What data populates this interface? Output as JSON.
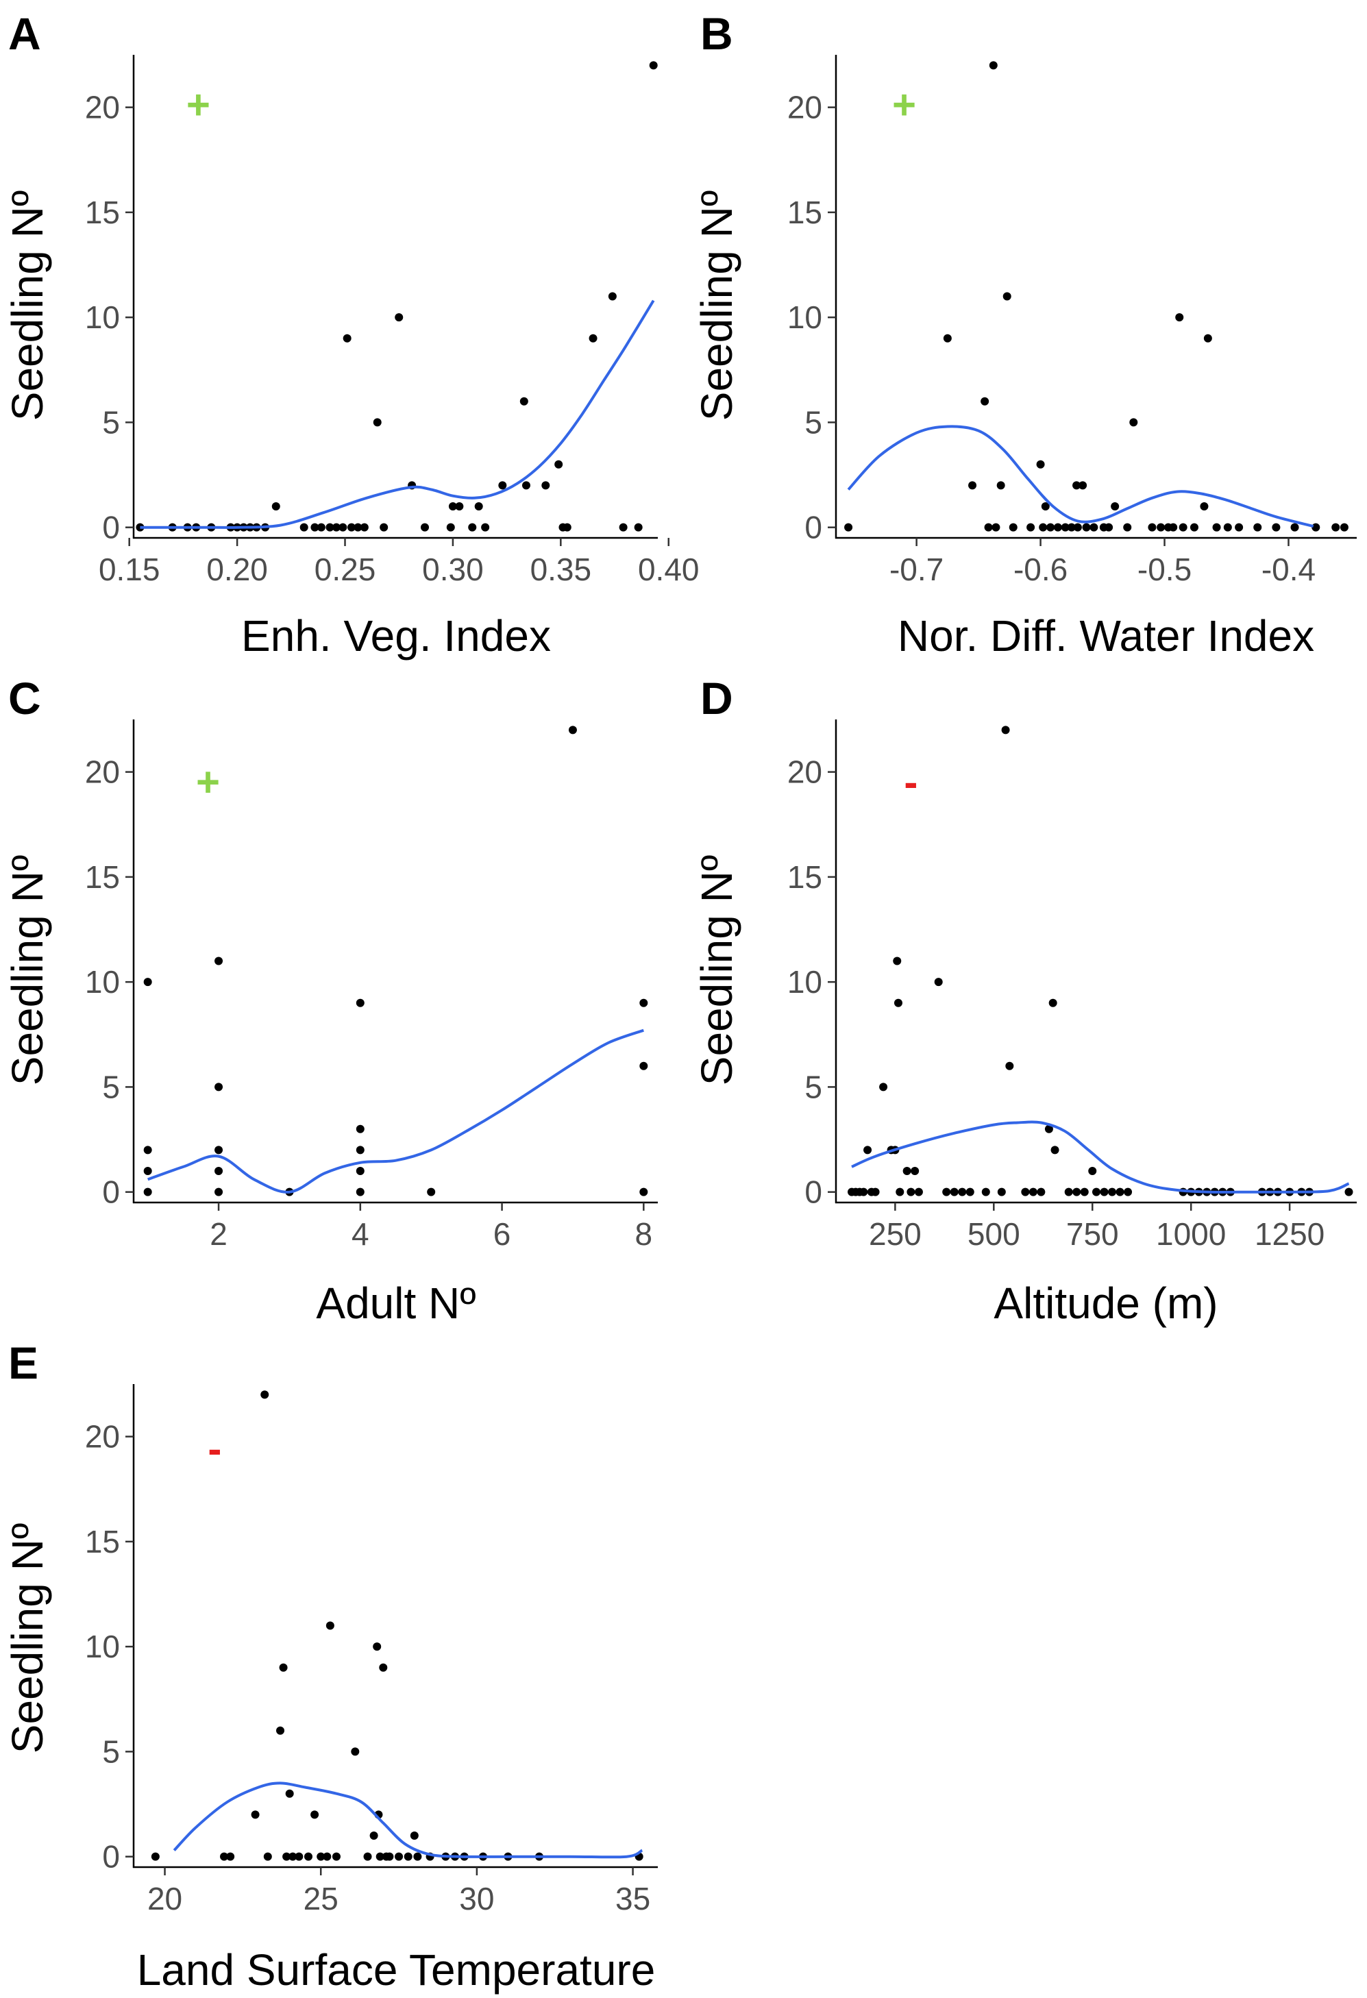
{
  "figure_type": "scatter_with_smooth",
  "colors": {
    "points": "#000000",
    "smooth": "#3366e6",
    "positive": "#8cd24b",
    "negative": "#e61e1e",
    "axis": "#000000",
    "tick_text": "#4d4d4d"
  },
  "chart_data": [
    {
      "panel": "A",
      "type": "scatter",
      "title": "",
      "xlabel": "Enh. Veg. Index",
      "ylabel": "Seedling Nº",
      "sign": "+",
      "sign_color": "#8cd24b",
      "sign_pos": [
        0.182,
        20.1
      ],
      "xlim": [
        0.152,
        0.395
      ],
      "ylim": [
        -0.5,
        22.5
      ],
      "xticks": [
        0.15,
        0.2,
        0.25,
        0.3,
        0.35,
        0.4
      ],
      "xtick_labels": [
        "0.15",
        "0.20",
        "0.25",
        "0.30",
        "0.35",
        "0.40"
      ],
      "yticks": [
        0,
        5,
        10,
        15,
        20
      ],
      "ytick_labels": [
        "0",
        "5",
        "10",
        "15",
        "20"
      ],
      "points": [
        [
          0.155,
          0
        ],
        [
          0.17,
          0
        ],
        [
          0.177,
          0
        ],
        [
          0.181,
          0
        ],
        [
          0.188,
          0
        ],
        [
          0.197,
          0
        ],
        [
          0.2,
          0
        ],
        [
          0.203,
          0
        ],
        [
          0.206,
          0
        ],
        [
          0.209,
          0
        ],
        [
          0.213,
          0
        ],
        [
          0.218,
          1
        ],
        [
          0.231,
          0
        ],
        [
          0.236,
          0
        ],
        [
          0.239,
          0
        ],
        [
          0.243,
          0
        ],
        [
          0.246,
          0
        ],
        [
          0.249,
          0
        ],
        [
          0.251,
          9
        ],
        [
          0.253,
          0
        ],
        [
          0.256,
          0
        ],
        [
          0.259,
          0
        ],
        [
          0.265,
          5
        ],
        [
          0.268,
          0
        ],
        [
          0.275,
          10
        ],
        [
          0.281,
          2
        ],
        [
          0.287,
          0
        ],
        [
          0.299,
          0
        ],
        [
          0.3,
          1
        ],
        [
          0.303,
          1
        ],
        [
          0.309,
          0
        ],
        [
          0.312,
          1
        ],
        [
          0.315,
          0
        ],
        [
          0.323,
          2
        ],
        [
          0.333,
          6
        ],
        [
          0.334,
          2
        ],
        [
          0.343,
          2
        ],
        [
          0.349,
          3
        ],
        [
          0.351,
          0
        ],
        [
          0.353,
          0
        ],
        [
          0.365,
          9
        ],
        [
          0.374,
          11
        ],
        [
          0.379,
          0
        ],
        [
          0.386,
          0
        ],
        [
          0.393,
          22
        ]
      ],
      "smooth": [
        [
          0.155,
          0
        ],
        [
          0.17,
          0
        ],
        [
          0.19,
          0
        ],
        [
          0.2,
          0
        ],
        [
          0.22,
          0.1
        ],
        [
          0.24,
          0.7
        ],
        [
          0.26,
          1.4
        ],
        [
          0.28,
          1.9
        ],
        [
          0.29,
          1.8
        ],
        [
          0.3,
          1.5
        ],
        [
          0.31,
          1.4
        ],
        [
          0.32,
          1.6
        ],
        [
          0.33,
          2.1
        ],
        [
          0.34,
          2.9
        ],
        [
          0.35,
          4.0
        ],
        [
          0.36,
          5.4
        ],
        [
          0.37,
          7.0
        ],
        [
          0.38,
          8.6
        ],
        [
          0.393,
          10.8
        ]
      ]
    },
    {
      "panel": "B",
      "type": "scatter",
      "title": "",
      "xlabel": "Nor. Diff. Water Index",
      "ylabel": "Seedling Nº",
      "sign": "+",
      "sign_color": "#8cd24b",
      "sign_pos": [
        -0.71,
        20.1
      ],
      "xlim": [
        -0.765,
        -0.345
      ],
      "ylim": [
        -0.5,
        22.5
      ],
      "xticks": [
        -0.7,
        -0.6,
        -0.5,
        -0.4
      ],
      "xtick_labels": [
        "-0.7",
        "-0.6",
        "-0.5",
        "-0.4"
      ],
      "yticks": [
        0,
        5,
        10,
        15,
        20
      ],
      "ytick_labels": [
        "0",
        "5",
        "10",
        "15",
        "20"
      ],
      "points": [
        [
          -0.755,
          0
        ],
        [
          -0.675,
          9
        ],
        [
          -0.655,
          2
        ],
        [
          -0.645,
          6
        ],
        [
          -0.642,
          0
        ],
        [
          -0.638,
          22
        ],
        [
          -0.636,
          0
        ],
        [
          -0.632,
          2
        ],
        [
          -0.627,
          11
        ],
        [
          -0.622,
          0
        ],
        [
          -0.608,
          0
        ],
        [
          -0.598,
          0
        ],
        [
          -0.6,
          3
        ],
        [
          -0.596,
          1
        ],
        [
          -0.592,
          0
        ],
        [
          -0.586,
          0
        ],
        [
          -0.58,
          0
        ],
        [
          -0.575,
          0
        ],
        [
          -0.571,
          2
        ],
        [
          -0.57,
          0
        ],
        [
          -0.566,
          2
        ],
        [
          -0.563,
          0
        ],
        [
          -0.557,
          0
        ],
        [
          -0.549,
          0
        ],
        [
          -0.545,
          0
        ],
        [
          -0.54,
          1
        ],
        [
          -0.53,
          0
        ],
        [
          -0.525,
          5
        ],
        [
          -0.51,
          0
        ],
        [
          -0.503,
          0
        ],
        [
          -0.497,
          0
        ],
        [
          -0.493,
          0
        ],
        [
          -0.488,
          10
        ],
        [
          -0.485,
          0
        ],
        [
          -0.476,
          0
        ],
        [
          -0.468,
          1
        ],
        [
          -0.465,
          9
        ],
        [
          -0.458,
          0
        ],
        [
          -0.449,
          0
        ],
        [
          -0.44,
          0
        ],
        [
          -0.425,
          0
        ],
        [
          -0.41,
          0
        ],
        [
          -0.395,
          0
        ],
        [
          -0.378,
          0
        ],
        [
          -0.362,
          0
        ],
        [
          -0.355,
          0
        ]
      ],
      "smooth": [
        [
          -0.755,
          1.8
        ],
        [
          -0.73,
          3.4
        ],
        [
          -0.7,
          4.5
        ],
        [
          -0.675,
          4.8
        ],
        [
          -0.65,
          4.6
        ],
        [
          -0.63,
          3.7
        ],
        [
          -0.61,
          2.3
        ],
        [
          -0.59,
          1.0
        ],
        [
          -0.57,
          0.3
        ],
        [
          -0.55,
          0.4
        ],
        [
          -0.53,
          0.9
        ],
        [
          -0.51,
          1.4
        ],
        [
          -0.49,
          1.7
        ],
        [
          -0.47,
          1.6
        ],
        [
          -0.45,
          1.3
        ],
        [
          -0.43,
          0.9
        ],
        [
          -0.41,
          0.5
        ],
        [
          -0.38,
          0.05
        ]
      ]
    },
    {
      "panel": "C",
      "type": "scatter",
      "title": "",
      "xlabel": "Adult Nº",
      "ylabel": "Seedling Nº",
      "sign": "+",
      "sign_color": "#8cd24b",
      "sign_pos": [
        1.85,
        19.5
      ],
      "xlim": [
        0.8,
        8.2
      ],
      "ylim": [
        -0.5,
        22.5
      ],
      "xticks": [
        2,
        4,
        6,
        8
      ],
      "xtick_labels": [
        "2",
        "4",
        "6",
        "8"
      ],
      "yticks": [
        0,
        5,
        10,
        15,
        20
      ],
      "ytick_labels": [
        "0",
        "5",
        "10",
        "15",
        "20"
      ],
      "points": [
        [
          1,
          10
        ],
        [
          1,
          2
        ],
        [
          1,
          1
        ],
        [
          1,
          0
        ],
        [
          2,
          11
        ],
        [
          2,
          5
        ],
        [
          2,
          2
        ],
        [
          2,
          1
        ],
        [
          2,
          0
        ],
        [
          3,
          0
        ],
        [
          4,
          9
        ],
        [
          4,
          3
        ],
        [
          4,
          2
        ],
        [
          4,
          1
        ],
        [
          4,
          0
        ],
        [
          5,
          0
        ],
        [
          7,
          22
        ],
        [
          8,
          9
        ],
        [
          8,
          6
        ],
        [
          8,
          0
        ]
      ],
      "smooth": [
        [
          1,
          0.6
        ],
        [
          1.5,
          1.2
        ],
        [
          2,
          1.7
        ],
        [
          2.5,
          0.6
        ],
        [
          3,
          0
        ],
        [
          3.5,
          0.9
        ],
        [
          4,
          1.4
        ],
        [
          4.5,
          1.5
        ],
        [
          5,
          2.0
        ],
        [
          5.5,
          2.9
        ],
        [
          6,
          3.9
        ],
        [
          6.5,
          5.0
        ],
        [
          7,
          6.1
        ],
        [
          7.5,
          7.1
        ],
        [
          8,
          7.7
        ]
      ]
    },
    {
      "panel": "D",
      "type": "scatter",
      "title": "",
      "xlabel": "Altitude (m)",
      "ylabel": "Seedling Nº",
      "sign": "-",
      "sign_color": "#e61e1e",
      "sign_pos": [
        290,
        19.5
      ],
      "xlim": [
        100,
        1420
      ],
      "ylim": [
        -0.5,
        22.5
      ],
      "xticks": [
        250,
        500,
        750,
        1000,
        1250
      ],
      "xtick_labels": [
        "250",
        "500",
        "750",
        "1000",
        "1250"
      ],
      "yticks": [
        0,
        5,
        10,
        15,
        20
      ],
      "ytick_labels": [
        "0",
        "5",
        "10",
        "15",
        "20"
      ],
      "points": [
        [
          140,
          0
        ],
        [
          150,
          0
        ],
        [
          160,
          0
        ],
        [
          170,
          0
        ],
        [
          180,
          2
        ],
        [
          190,
          0
        ],
        [
          200,
          0
        ],
        [
          220,
          5
        ],
        [
          240,
          2
        ],
        [
          250,
          2
        ],
        [
          255,
          11
        ],
        [
          258,
          9
        ],
        [
          262,
          0
        ],
        [
          280,
          1
        ],
        [
          290,
          0
        ],
        [
          300,
          1
        ],
        [
          310,
          0
        ],
        [
          360,
          10
        ],
        [
          380,
          0
        ],
        [
          400,
          0
        ],
        [
          420,
          0
        ],
        [
          440,
          0
        ],
        [
          480,
          0
        ],
        [
          520,
          0
        ],
        [
          530,
          22
        ],
        [
          540,
          6
        ],
        [
          580,
          0
        ],
        [
          600,
          0
        ],
        [
          620,
          0
        ],
        [
          640,
          3
        ],
        [
          650,
          9
        ],
        [
          655,
          2
        ],
        [
          690,
          0
        ],
        [
          710,
          0
        ],
        [
          730,
          0
        ],
        [
          750,
          1
        ],
        [
          760,
          0
        ],
        [
          780,
          0
        ],
        [
          800,
          0
        ],
        [
          820,
          0
        ],
        [
          840,
          0
        ],
        [
          980,
          0
        ],
        [
          1000,
          0
        ],
        [
          1020,
          0
        ],
        [
          1040,
          0
        ],
        [
          1060,
          0
        ],
        [
          1080,
          0
        ],
        [
          1100,
          0
        ],
        [
          1180,
          0
        ],
        [
          1200,
          0
        ],
        [
          1220,
          0
        ],
        [
          1250,
          0
        ],
        [
          1280,
          0
        ],
        [
          1300,
          0
        ],
        [
          1400,
          0
        ]
      ],
      "smooth": [
        [
          140,
          1.2
        ],
        [
          200,
          1.7
        ],
        [
          300,
          2.3
        ],
        [
          400,
          2.8
        ],
        [
          500,
          3.2
        ],
        [
          560,
          3.3
        ],
        [
          620,
          3.3
        ],
        [
          680,
          2.9
        ],
        [
          740,
          2.0
        ],
        [
          800,
          1.1
        ],
        [
          880,
          0.4
        ],
        [
          960,
          0.1
        ],
        [
          1050,
          0
        ],
        [
          1150,
          0
        ],
        [
          1250,
          0
        ],
        [
          1350,
          0.05
        ],
        [
          1400,
          0.4
        ]
      ]
    },
    {
      "panel": "E",
      "type": "scatter",
      "title": "",
      "xlabel": "Land Surface Temperature",
      "ylabel": "Seedling Nº",
      "sign": "-",
      "sign_color": "#e61e1e",
      "sign_pos": [
        21.6,
        19.4
      ],
      "xlim": [
        19.0,
        35.8
      ],
      "ylim": [
        -0.5,
        22.5
      ],
      "xticks": [
        20,
        25,
        30,
        35
      ],
      "xtick_labels": [
        "20",
        "25",
        "30",
        "35"
      ],
      "yticks": [
        0,
        5,
        10,
        15,
        20
      ],
      "ytick_labels": [
        "0",
        "5",
        "10",
        "15",
        "20"
      ],
      "points": [
        [
          19.7,
          0
        ],
        [
          21.9,
          0
        ],
        [
          22.1,
          0
        ],
        [
          22.9,
          2
        ],
        [
          23.3,
          0
        ],
        [
          23.2,
          22
        ],
        [
          23.7,
          6
        ],
        [
          23.8,
          9
        ],
        [
          23.9,
          0
        ],
        [
          24.0,
          3
        ],
        [
          24.1,
          0
        ],
        [
          24.3,
          0
        ],
        [
          24.6,
          0
        ],
        [
          24.8,
          2
        ],
        [
          25.0,
          0
        ],
        [
          25.2,
          0
        ],
        [
          25.3,
          11
        ],
        [
          25.5,
          0
        ],
        [
          26.1,
          5
        ],
        [
          26.5,
          0
        ],
        [
          26.7,
          1
        ],
        [
          26.8,
          10
        ],
        [
          26.85,
          2
        ],
        [
          26.9,
          0
        ],
        [
          27.0,
          9
        ],
        [
          27.1,
          0
        ],
        [
          27.2,
          0
        ],
        [
          27.5,
          0
        ],
        [
          27.8,
          0
        ],
        [
          28.0,
          1
        ],
        [
          28.1,
          0
        ],
        [
          28.5,
          0
        ],
        [
          29.0,
          0
        ],
        [
          29.3,
          0
        ],
        [
          29.6,
          0
        ],
        [
          30.2,
          0
        ],
        [
          31.0,
          0
        ],
        [
          32.0,
          0
        ],
        [
          35.2,
          0
        ]
      ],
      "smooth": [
        [
          20.3,
          0.3
        ],
        [
          21.0,
          1.4
        ],
        [
          22.0,
          2.6
        ],
        [
          23.0,
          3.3
        ],
        [
          23.7,
          3.5
        ],
        [
          24.5,
          3.3
        ],
        [
          25.5,
          3.0
        ],
        [
          26.3,
          2.6
        ],
        [
          27.0,
          1.6
        ],
        [
          27.7,
          0.6
        ],
        [
          28.5,
          0.1
        ],
        [
          29.5,
          0
        ],
        [
          31,
          0
        ],
        [
          33,
          0
        ],
        [
          34.8,
          0
        ],
        [
          35.3,
          0.3
        ]
      ]
    }
  ]
}
